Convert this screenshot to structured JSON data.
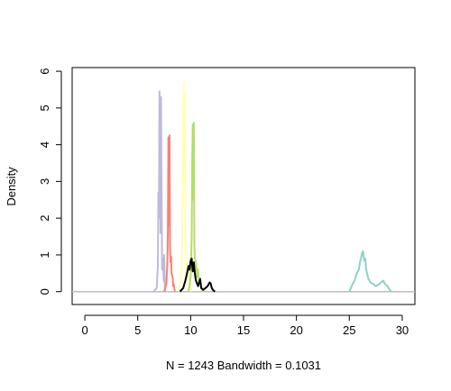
{
  "chart_data": {
    "type": "line",
    "title": "",
    "xlabel": "N = 1243   Bandwidth = 0.1031",
    "ylabel": "Density",
    "xlim": [
      -1.2,
      31.2
    ],
    "ylim": [
      -0.35,
      6.1
    ],
    "xticks": [
      "0",
      "5",
      "10",
      "15",
      "20",
      "25",
      "30"
    ],
    "yticks": [
      "0",
      "1",
      "2",
      "3",
      "4",
      "5",
      "6"
    ],
    "grid": false,
    "baseline_color": "#bdbdbd",
    "series": [
      {
        "color": "#bebada",
        "x": [
          6.5,
          6.8,
          6.9,
          6.95,
          7.0,
          7.05,
          7.1,
          7.15,
          7.2,
          7.3,
          7.35,
          7.4,
          7.45,
          7.5,
          7.55,
          7.6
        ],
        "y": [
          0,
          0.1,
          0.7,
          2.7,
          2.0,
          5.45,
          5.0,
          1.6,
          5.3,
          0.6,
          0.8,
          0.9,
          0.3,
          1.0,
          0.2,
          0
        ]
      },
      {
        "color": "#fb8072",
        "x": [
          7.5,
          7.7,
          7.8,
          7.85,
          7.9,
          7.95,
          8.0,
          8.05,
          8.1,
          8.15,
          8.2,
          8.3,
          8.35,
          8.4,
          8.5
        ],
        "y": [
          0,
          0.2,
          0.8,
          1.6,
          4.2,
          1.8,
          4.25,
          1.2,
          0.8,
          0.95,
          0.5,
          0.4,
          0.15,
          0.2,
          0
        ]
      },
      {
        "color": "#ffffb3",
        "x": [
          8.9,
          9.1,
          9.2,
          9.3,
          9.35,
          9.4,
          9.45,
          9.5,
          9.6,
          9.7,
          9.8,
          9.9,
          10.0,
          10.1
        ],
        "y": [
          0,
          0.3,
          1.2,
          4.8,
          5.7,
          3.0,
          5.4,
          2.0,
          0.5,
          0.8,
          0.3,
          0.4,
          0.1,
          0
        ]
      },
      {
        "color": "#b3de69",
        "x": [
          9.8,
          10.0,
          10.1,
          10.15,
          10.2,
          10.25,
          10.3,
          10.35,
          10.4,
          10.5,
          10.6,
          10.7,
          10.8,
          10.9,
          11.0,
          11.2
        ],
        "y": [
          0,
          0.4,
          1.5,
          3.5,
          4.55,
          2.5,
          4.6,
          1.2,
          0.9,
          0.8,
          0.4,
          0.6,
          0.2,
          0.3,
          0.1,
          0
        ]
      },
      {
        "color": "#000000",
        "x": [
          9.0,
          9.3,
          9.5,
          9.7,
          9.8,
          9.9,
          10.0,
          10.1,
          10.2,
          10.3,
          10.4,
          10.5,
          10.7,
          10.9,
          11.0,
          11.2,
          11.4,
          11.6,
          11.7,
          11.8,
          11.9,
          12.0,
          12.1,
          12.3
        ],
        "y": [
          0,
          0.1,
          0.3,
          0.55,
          0.7,
          0.6,
          0.85,
          0.9,
          0.55,
          0.8,
          0.5,
          0.3,
          0.15,
          0.35,
          0.1,
          0.05,
          0.1,
          0.15,
          0.2,
          0.25,
          0.22,
          0.1,
          0.05,
          0
        ]
      },
      {
        "color": "#8dd3c7",
        "x": [
          25.0,
          25.3,
          25.5,
          25.7,
          25.9,
          26.0,
          26.1,
          26.2,
          26.3,
          26.4,
          26.5,
          26.6,
          26.8,
          27.0,
          27.3,
          27.5,
          27.8,
          28.0,
          28.2,
          28.4,
          28.6,
          28.8,
          29.0
        ],
        "y": [
          0,
          0.2,
          0.3,
          0.5,
          0.6,
          0.8,
          0.9,
          1.05,
          1.1,
          0.85,
          0.9,
          0.6,
          0.35,
          0.25,
          0.2,
          0.15,
          0.2,
          0.25,
          0.3,
          0.2,
          0.15,
          0.05,
          0
        ]
      }
    ]
  }
}
